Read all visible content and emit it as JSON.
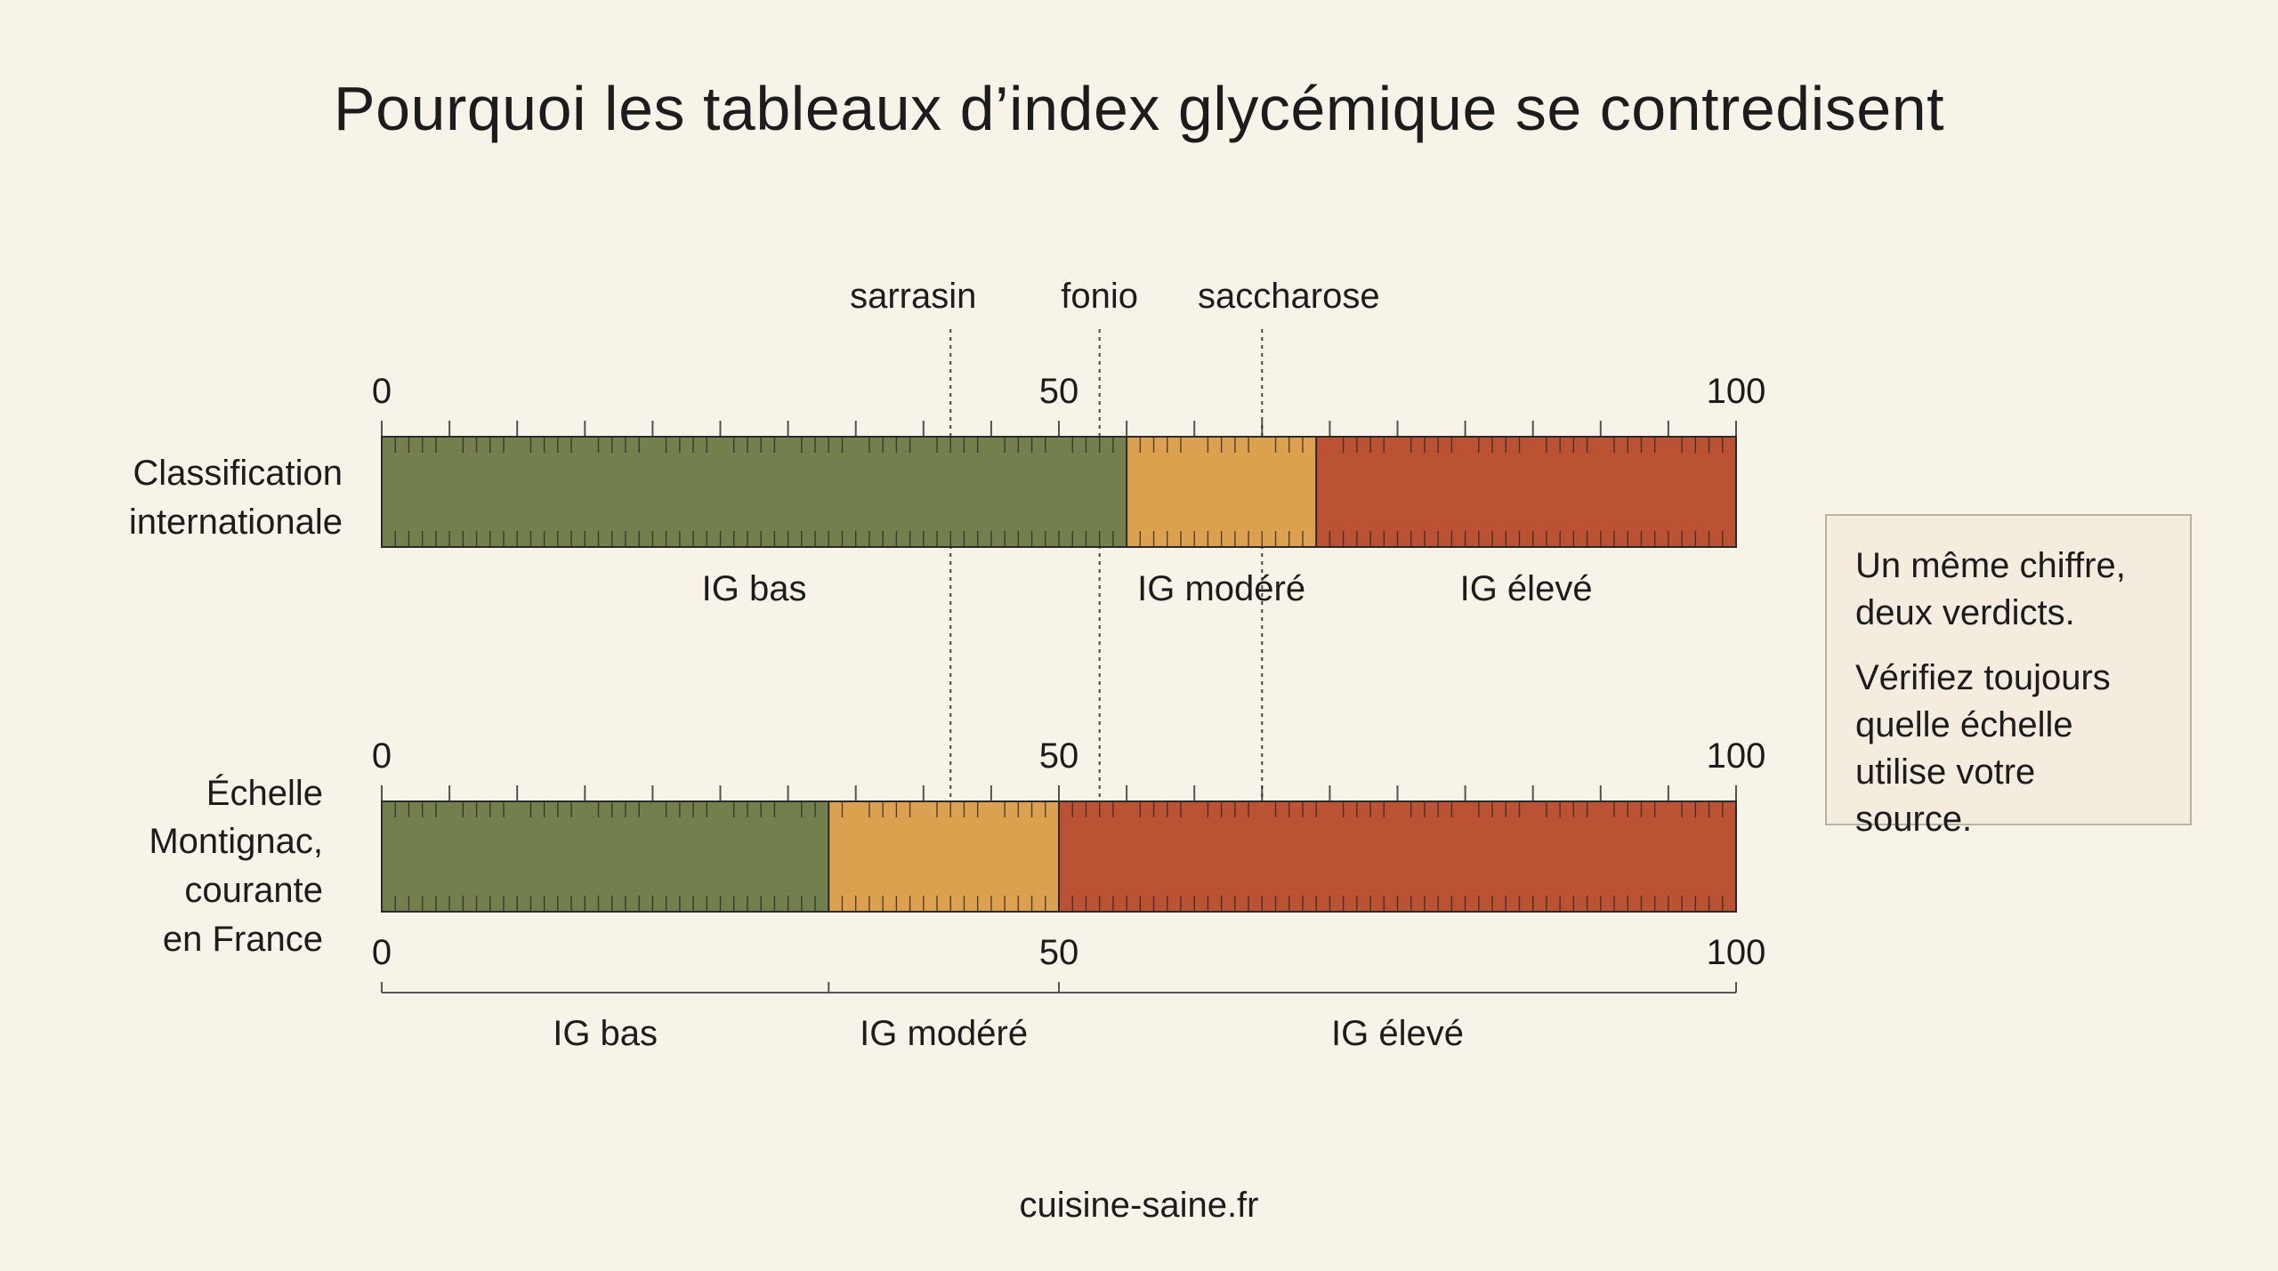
{
  "title": "Pourquoi les tableaux d’index glycémique se contredisent",
  "footer": "cuisine-saine.fr",
  "note": {
    "line1": "Un même chiffre, deux verdicts.",
    "line2": "Vérifiez toujours quelle échelle utilise votre source."
  },
  "colors": {
    "low": "#737f4c",
    "moderate": "#dba14e",
    "high": "#bc5234",
    "background": "#f7f3e8",
    "note_background": "#f4ecdf"
  },
  "chart_data": {
    "type": "bar",
    "axis_range": [
      0,
      100
    ],
    "scales": [
      {
        "label_lines": [
          "Classification",
          "internationale"
        ],
        "tick_labels": [
          "0",
          "50",
          "100"
        ],
        "zones": [
          {
            "name": "IG bas",
            "from": 0,
            "to": 55,
            "color": "#737f4c"
          },
          {
            "name": "IG modéré",
            "from": 55,
            "to": 69,
            "color": "#dba14e"
          },
          {
            "name": "IG élevé",
            "from": 69,
            "to": 100,
            "color": "#bc5234"
          }
        ]
      },
      {
        "label_lines": [
          "Échelle",
          "Montignac,",
          "courante",
          "en France"
        ],
        "tick_labels": [
          "0",
          "50",
          "100"
        ],
        "zones": [
          {
            "name": "IG bas",
            "from": 0,
            "to": 33,
            "color": "#737f4c"
          },
          {
            "name": "IG modéré",
            "from": 33,
            "to": 50,
            "color": "#dba14e"
          },
          {
            "name": "IG élevé",
            "from": 50,
            "to": 100,
            "color": "#bc5234"
          }
        ]
      }
    ],
    "markers": [
      {
        "name": "sarrasin",
        "value": 42
      },
      {
        "name": "fonio",
        "value": 53
      },
      {
        "name": "saccharose",
        "value": 65
      }
    ]
  }
}
